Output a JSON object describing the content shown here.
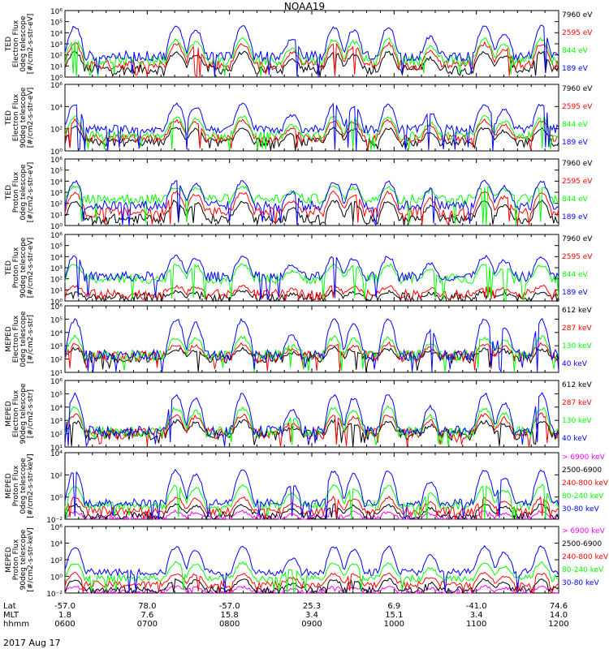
{
  "title": "NOAA19",
  "colors": {
    "black": "#000000",
    "red": "#ff0000",
    "green": "#00ff00",
    "blue": "#0000ff",
    "magenta": "#ff00ff"
  },
  "chart_data": {
    "type": "line",
    "title": "NOAA19",
    "date_label": "2017 Aug 17",
    "x_axis": {
      "rows": [
        {
          "name": "Lat",
          "values": [
            "-57.0",
            "78.0",
            "-57.0",
            "25.3",
            "6.9",
            "-41.0",
            "74.6"
          ]
        },
        {
          "name": "MLT",
          "values": [
            "1.8",
            "7.6",
            "15.8",
            "3.4",
            "15.1",
            "3.4",
            "14.0"
          ]
        },
        {
          "name": "hhmm",
          "values": [
            "0600",
            "0700",
            "0800",
            "0900",
            "1000",
            "1100",
            "1200"
          ]
        }
      ]
    },
    "panels": [
      {
        "ylabel": [
          "TED",
          "Electron Flux",
          "0deg telescope",
          "[#/cm2-s-str-eV]"
        ],
        "yticks": [
          "10⁰",
          "10¹",
          "10²",
          "10³",
          "10⁴",
          "10⁵",
          "10⁶"
        ],
        "ylog_range": [
          0,
          6
        ],
        "series": [
          {
            "name": "7960 eV",
            "color": "#000000",
            "base_log": 0.7,
            "peak_log": 2.4
          },
          {
            "name": "2595 eV",
            "color": "#ff0000",
            "base_log": 1.1,
            "peak_log": 3.2
          },
          {
            "name": "844 eV",
            "color": "#00ff00",
            "base_log": 1.5,
            "peak_log": 3.6
          },
          {
            "name": "189 eV",
            "color": "#0000ff",
            "base_log": 1.9,
            "peak_log": 4.8
          }
        ]
      },
      {
        "ylabel": [
          "TED",
          "Electron Flux",
          "90deg telescope",
          "[#/cm2-s-str-eV]"
        ],
        "yticks": [
          "10⁰",
          "10²",
          "10⁴",
          "10⁶"
        ],
        "ylog_range": [
          0,
          7
        ],
        "series": [
          {
            "name": "7960 eV",
            "color": "#000000",
            "base_log": 0.9,
            "peak_log": 2.6
          },
          {
            "name": "2595 eV",
            "color": "#ff0000",
            "base_log": 1.3,
            "peak_log": 3.4
          },
          {
            "name": "844 eV",
            "color": "#00ff00",
            "base_log": 1.6,
            "peak_log": 3.8
          },
          {
            "name": "189 eV",
            "color": "#0000ff",
            "base_log": 2.3,
            "peak_log": 5.2
          }
        ]
      },
      {
        "ylabel": [
          "TED",
          "Proton Flux",
          "0deg telescope",
          "[#/cm2-s-str-eV]"
        ],
        "yticks": [
          "10⁰",
          "10¹",
          "10²",
          "10³",
          "10⁴",
          "10⁵",
          "10⁶"
        ],
        "ylog_range": [
          0,
          6
        ],
        "series": [
          {
            "name": "7960 eV",
            "color": "#000000",
            "base_log": 0.6,
            "peak_log": 2.4
          },
          {
            "name": "2595 eV",
            "color": "#ff0000",
            "base_log": 1.2,
            "peak_log": 3.2
          },
          {
            "name": "844 eV",
            "color": "#00ff00",
            "base_log": 2.4,
            "peak_log": 3.6
          },
          {
            "name": "189 eV",
            "color": "#0000ff",
            "base_log": 1.8,
            "peak_log": 4.2
          }
        ]
      },
      {
        "ylabel": [
          "TED",
          "Proton Flux",
          "90deg telescope",
          "[#/cm2-s-str-eV]"
        ],
        "yticks": [
          "10⁰",
          "10¹",
          "10²",
          "10³",
          "10⁴",
          "10⁵",
          "10⁶"
        ],
        "ylog_range": [
          0,
          6
        ],
        "series": [
          {
            "name": "7960 eV",
            "color": "#000000",
            "base_log": 0.3,
            "peak_log": 0.9
          },
          {
            "name": "2595 eV",
            "color": "#ff0000",
            "base_log": 0.6,
            "peak_log": 1.4
          },
          {
            "name": "844 eV",
            "color": "#00ff00",
            "base_log": 2.0,
            "peak_log": 3.4
          },
          {
            "name": "189 eV",
            "color": "#0000ff",
            "base_log": 2.2,
            "peak_log": 4.2
          }
        ]
      },
      {
        "ylabel": [
          "MEPED",
          "Electron Flux",
          "0deg telescope",
          "[#/cm2-s-str]"
        ],
        "yticks": [
          "10¹",
          "10²",
          "10³",
          "10⁴",
          "10⁵",
          "10⁶"
        ],
        "ylog_range": [
          1,
          6.4
        ],
        "series": [
          {
            "name": "612 keV",
            "color": "#000000",
            "base_log": 2.2,
            "peak_log": 3.0
          },
          {
            "name": "287 keV",
            "color": "#ff0000",
            "base_log": 2.3,
            "peak_log": 3.4
          },
          {
            "name": "130 keV",
            "color": "#00ff00",
            "base_log": 2.4,
            "peak_log": 4.0
          },
          {
            "name": "40 keV",
            "color": "#0000ff",
            "base_log": 2.4,
            "peak_log": 5.6
          }
        ]
      },
      {
        "ylabel": [
          "MEPED",
          "Electron Flux",
          "90deg telescope",
          "[#/cm2-s-str]"
        ],
        "yticks": [
          "10¹",
          "10²",
          "10³",
          "10⁴",
          "10⁵",
          "10⁶"
        ],
        "ylog_range": [
          1,
          6.4
        ],
        "series": [
          {
            "name": "612 keV",
            "color": "#000000",
            "base_log": 2.0,
            "peak_log": 3.2
          },
          {
            "name": "287 keV",
            "color": "#ff0000",
            "base_log": 2.1,
            "peak_log": 3.8
          },
          {
            "name": "130 keV",
            "color": "#00ff00",
            "base_log": 2.2,
            "peak_log": 4.4
          },
          {
            "name": "40 keV",
            "color": "#0000ff",
            "base_log": 2.3,
            "peak_log": 5.6
          }
        ]
      },
      {
        "ylabel": [
          "MEPED",
          "Proton Flux",
          "0deg telescope",
          "[#/cm2-s-str-keV]"
        ],
        "yticks": [
          "10⁻²",
          "10⁰",
          "10²",
          "10⁴"
        ],
        "ylog_range": [
          -2.3,
          5
        ],
        "series": [
          {
            "name": "> 6900 keV",
            "color": "#ff00ff",
            "base_log": -2.2,
            "peak_log": -1.4
          },
          {
            "name": "2500-6900",
            "color": "#000000",
            "base_log": -1.9,
            "peak_log": -0.6
          },
          {
            "name": "240-800 keV",
            "color": "#ff0000",
            "base_log": -1.4,
            "peak_log": 0.2
          },
          {
            "name": "80-240 keV",
            "color": "#00ff00",
            "base_log": -0.8,
            "peak_log": 1.6
          },
          {
            "name": "30-80 keV",
            "color": "#0000ff",
            "base_log": -0.5,
            "peak_log": 3.4
          }
        ]
      },
      {
        "ylabel": [
          "MEPED",
          "Proton Flux",
          "90deg telescope",
          "[#/cm2-s-str-keV]"
        ],
        "yticks": [
          "10⁻²",
          "10⁰",
          "10²",
          "10⁴",
          "10⁶"
        ],
        "ylog_range": [
          -2.3,
          6.3
        ],
        "series": [
          {
            "name": "> 6900 keV",
            "color": "#ff00ff",
            "base_log": -2.2,
            "peak_log": -1.4
          },
          {
            "name": "2500-6900",
            "color": "#000000",
            "base_log": -1.9,
            "peak_log": -0.4
          },
          {
            "name": "240-800 keV",
            "color": "#ff0000",
            "base_log": -1.2,
            "peak_log": 0.4
          },
          {
            "name": "80-240 keV",
            "color": "#00ff00",
            "base_log": -0.4,
            "peak_log": 1.8
          },
          {
            "name": "30-80 keV",
            "color": "#0000ff",
            "base_log": 0.4,
            "peak_log": 4.0
          }
        ]
      }
    ],
    "events": [
      {
        "t": 0.02,
        "w": 0.02,
        "s": 0.9
      },
      {
        "t": 0.225,
        "w": 0.022,
        "s": 0.9
      },
      {
        "t": 0.265,
        "w": 0.02,
        "s": 0.8
      },
      {
        "t": 0.36,
        "w": 0.022,
        "s": 0.9,
        "dome": true
      },
      {
        "t": 0.46,
        "w": 0.02,
        "s": 0.5
      },
      {
        "t": 0.545,
        "w": 0.02,
        "s": 0.9
      },
      {
        "t": 0.585,
        "w": 0.02,
        "s": 0.8
      },
      {
        "t": 0.655,
        "w": 0.02,
        "s": 0.9,
        "dome": true
      },
      {
        "t": 0.74,
        "w": 0.018,
        "s": 0.6
      },
      {
        "t": 0.85,
        "w": 0.022,
        "s": 0.9
      },
      {
        "t": 0.89,
        "w": 0.02,
        "s": 0.7
      },
      {
        "t": 0.965,
        "w": 0.02,
        "s": 0.9
      }
    ]
  }
}
